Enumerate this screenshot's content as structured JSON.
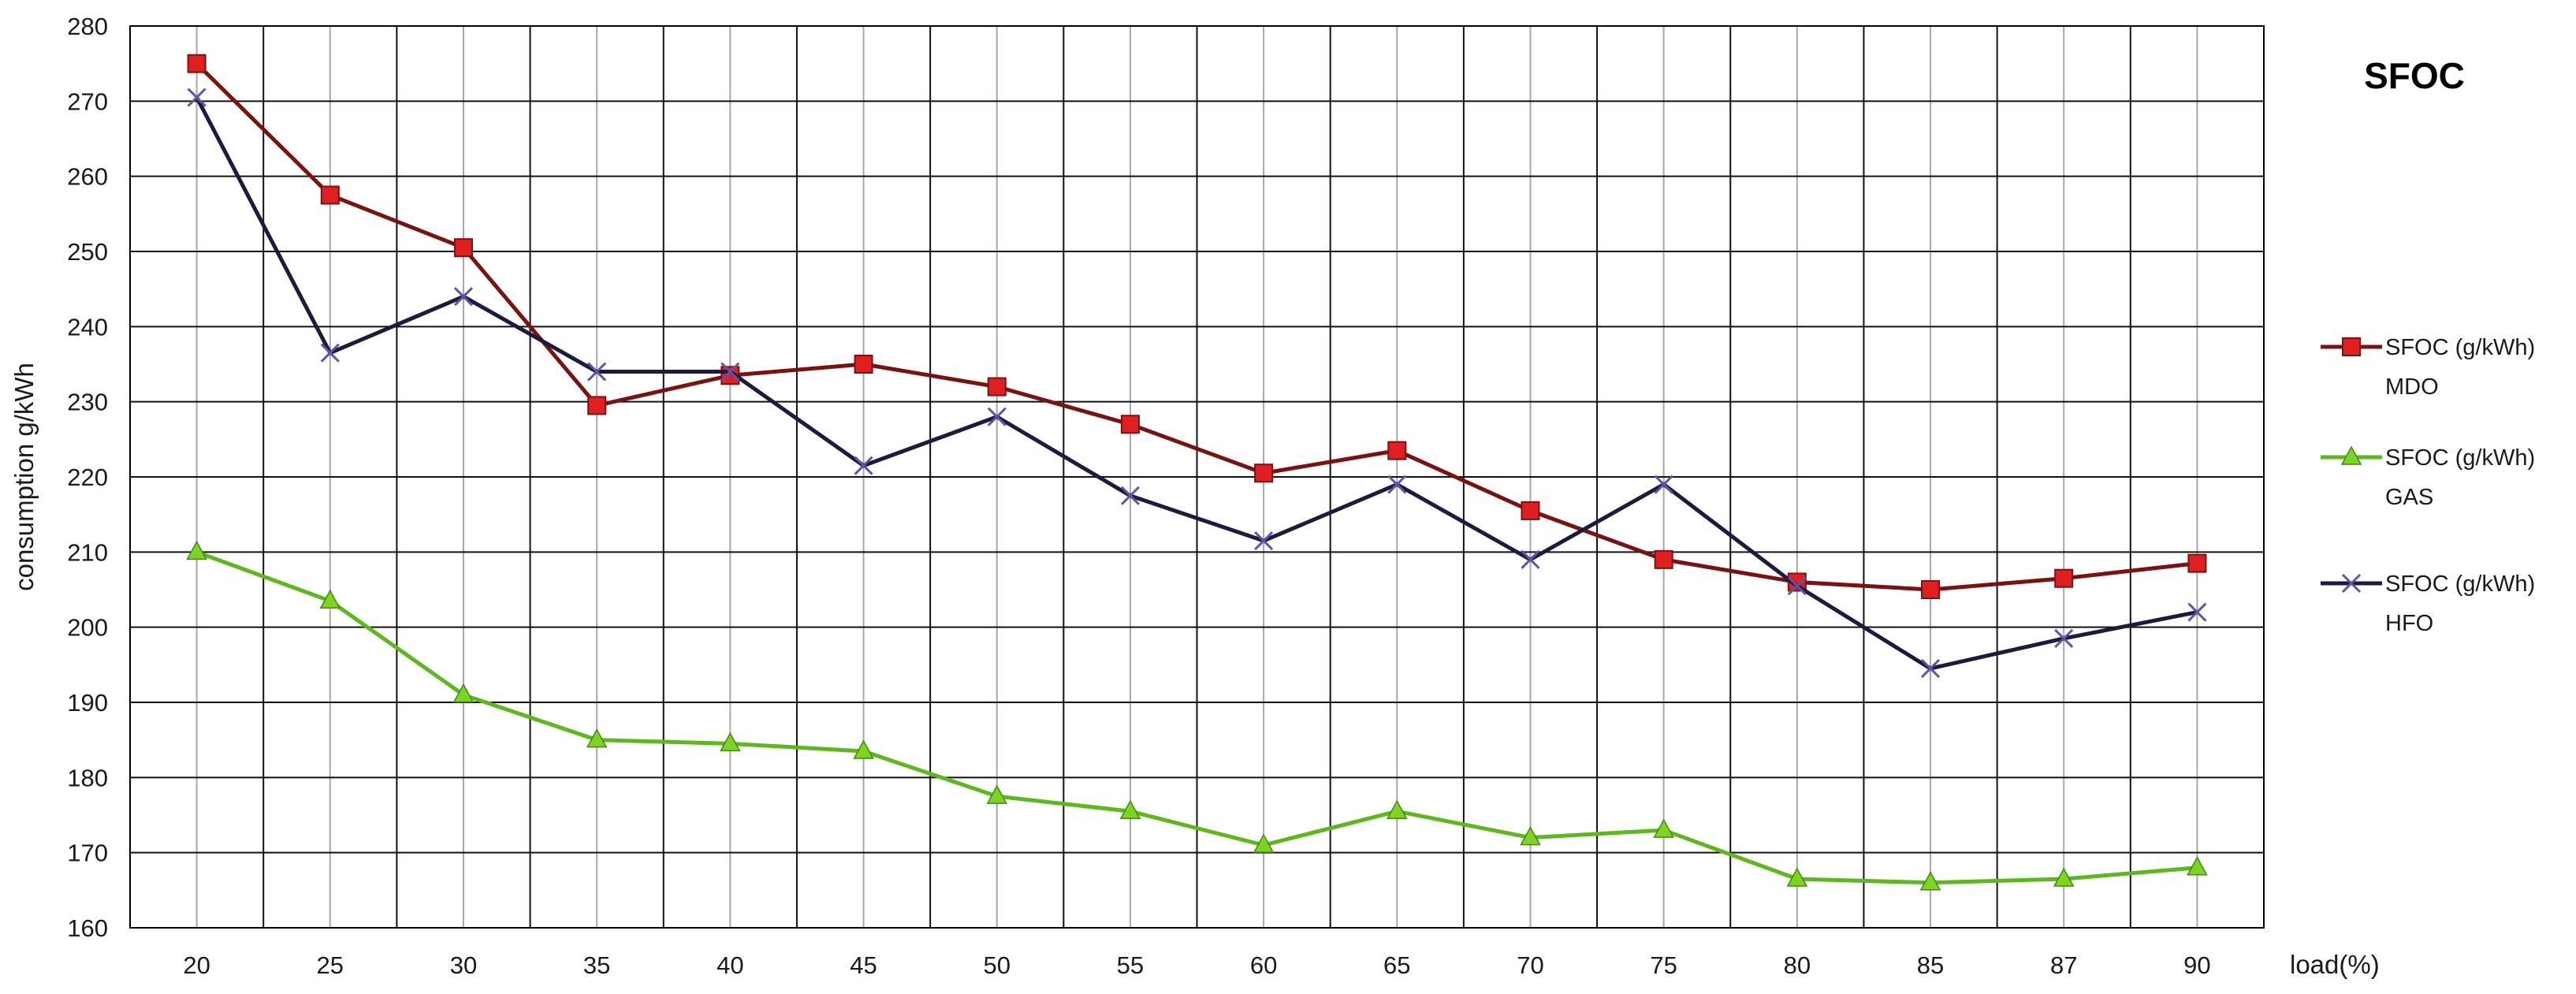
{
  "chart_data": {
    "type": "line",
    "title": "SFOC",
    "xlabel": "load(%)",
    "ylabel": "consumption g/kWh",
    "categories": [
      "20",
      "25",
      "30",
      "35",
      "40",
      "45",
      "50",
      "55",
      "60",
      "65",
      "70",
      "75",
      "80",
      "85",
      "87",
      "90"
    ],
    "ylim": [
      160,
      280
    ],
    "yticks": [
      160,
      170,
      180,
      190,
      200,
      210,
      220,
      230,
      240,
      250,
      260,
      270,
      280
    ],
    "grid": true,
    "legend_position": "right",
    "series": [
      {
        "name": "SFOC  (g/kWh)",
        "name_line2": "MDO",
        "color": "#7a1212",
        "marker_color": "#e02020",
        "marker": "square",
        "values": [
          275,
          257.5,
          250.5,
          229.5,
          233.5,
          235,
          232,
          227,
          220.5,
          223.5,
          215.5,
          209,
          206,
          205,
          206.5,
          208.5
        ]
      },
      {
        "name": "SFOC  (g/kWh)",
        "name_line2": "GAS",
        "color": "#5cb81c",
        "marker_color": "#7fd321",
        "marker": "triangle",
        "values": [
          210,
          203.5,
          191,
          185,
          184.5,
          183.5,
          177.5,
          175.5,
          171,
          175.5,
          172,
          173,
          166.5,
          166,
          166.5,
          168
        ]
      },
      {
        "name": "SFOC  (g/kWh)",
        "name_line2": "HFO",
        "color": "#1c1a3e",
        "marker_color": "#5d56a8",
        "marker": "x",
        "values": [
          270.5,
          236.5,
          244,
          234,
          234,
          221.5,
          228,
          217.5,
          211.5,
          219,
          209,
          219,
          205.5,
          194.5,
          198.5,
          202
        ]
      }
    ]
  }
}
